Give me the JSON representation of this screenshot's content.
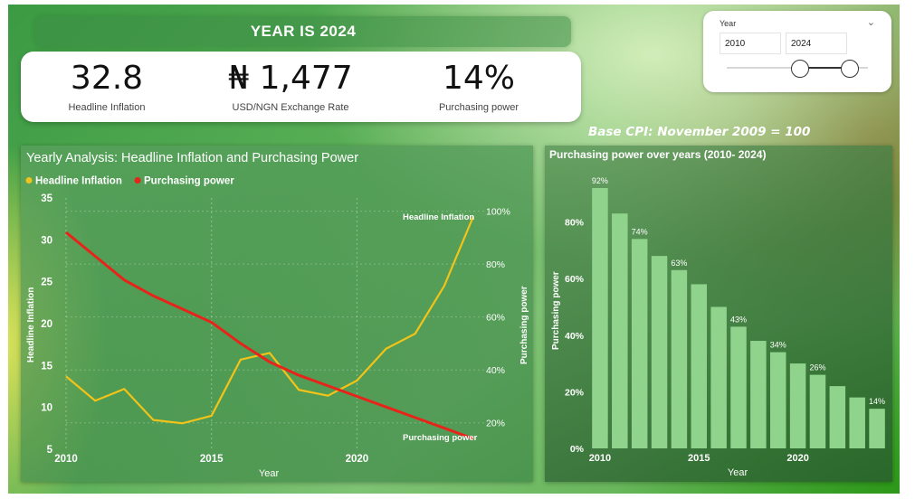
{
  "header": {
    "year_banner": "YEAR IS 2024"
  },
  "kpis": [
    {
      "value": "32.8",
      "label": "Headline Inflation"
    },
    {
      "value": "₦ 1,477",
      "label": "USD/NGN Exchange Rate"
    },
    {
      "value": "14%",
      "label": "Purchasing power"
    }
  ],
  "slicer": {
    "title": "Year",
    "start": "2010",
    "end": "2024",
    "range_low": 2010,
    "range_high": 2024
  },
  "base_cpi": "Base CPI: November 2009 = 100",
  "colors": {
    "inflation": "#f2c318",
    "purchasing": "#e8231a",
    "bar": "#8fd38c"
  },
  "chart_data": [
    {
      "type": "line",
      "title": "Yearly Analysis: Headline Inflation and Purchasing Power",
      "xlabel": "Year",
      "ylabel": "Headline Inflation",
      "y2label": "Purchasing power",
      "x": [
        2010,
        2011,
        2012,
        2013,
        2014,
        2015,
        2016,
        2017,
        2018,
        2019,
        2020,
        2021,
        2022,
        2023,
        2024
      ],
      "xticks": [
        "2010",
        "2015",
        "2020"
      ],
      "ylim": [
        5,
        35
      ],
      "yticks": [
        "5",
        "10",
        "15",
        "20",
        "25",
        "30",
        "35"
      ],
      "y2lim": [
        0.1,
        1.05
      ],
      "y2ticks": [
        "20%",
        "40%",
        "60%",
        "80%",
        "100%"
      ],
      "legend": "top-left",
      "series": [
        {
          "name": "Headline Inflation",
          "axis": "left",
          "values": [
            13.7,
            10.8,
            12.2,
            8.5,
            8.1,
            9.0,
            15.7,
            16.5,
            12.1,
            11.4,
            13.2,
            17.0,
            18.8,
            24.5,
            32.8
          ]
        },
        {
          "name": "Purchasing power",
          "axis": "right",
          "values": [
            0.92,
            0.83,
            0.74,
            0.68,
            0.63,
            0.58,
            0.5,
            0.43,
            0.38,
            0.34,
            0.3,
            0.26,
            0.22,
            0.18,
            0.14
          ]
        }
      ]
    },
    {
      "type": "bar",
      "title": "Purchasing power over years (2010- 2024)",
      "xlabel": "Year",
      "ylabel": "Purchasing power",
      "x": [
        2010,
        2011,
        2012,
        2013,
        2014,
        2015,
        2016,
        2017,
        2018,
        2019,
        2020,
        2021,
        2022,
        2023,
        2024
      ],
      "xticks": [
        "2010",
        "2015",
        "2020"
      ],
      "values": [
        0.92,
        0.83,
        0.74,
        0.68,
        0.63,
        0.58,
        0.5,
        0.43,
        0.38,
        0.34,
        0.3,
        0.26,
        0.22,
        0.18,
        0.14
      ],
      "data_labels": {
        "0": "92%",
        "2": "74%",
        "4": "63%",
        "7": "43%",
        "9": "34%",
        "11": "26%",
        "14": "14%"
      },
      "ylim": [
        0,
        0.92
      ],
      "yticks": [
        "0%",
        "20%",
        "40%",
        "60%",
        "80%"
      ]
    }
  ]
}
